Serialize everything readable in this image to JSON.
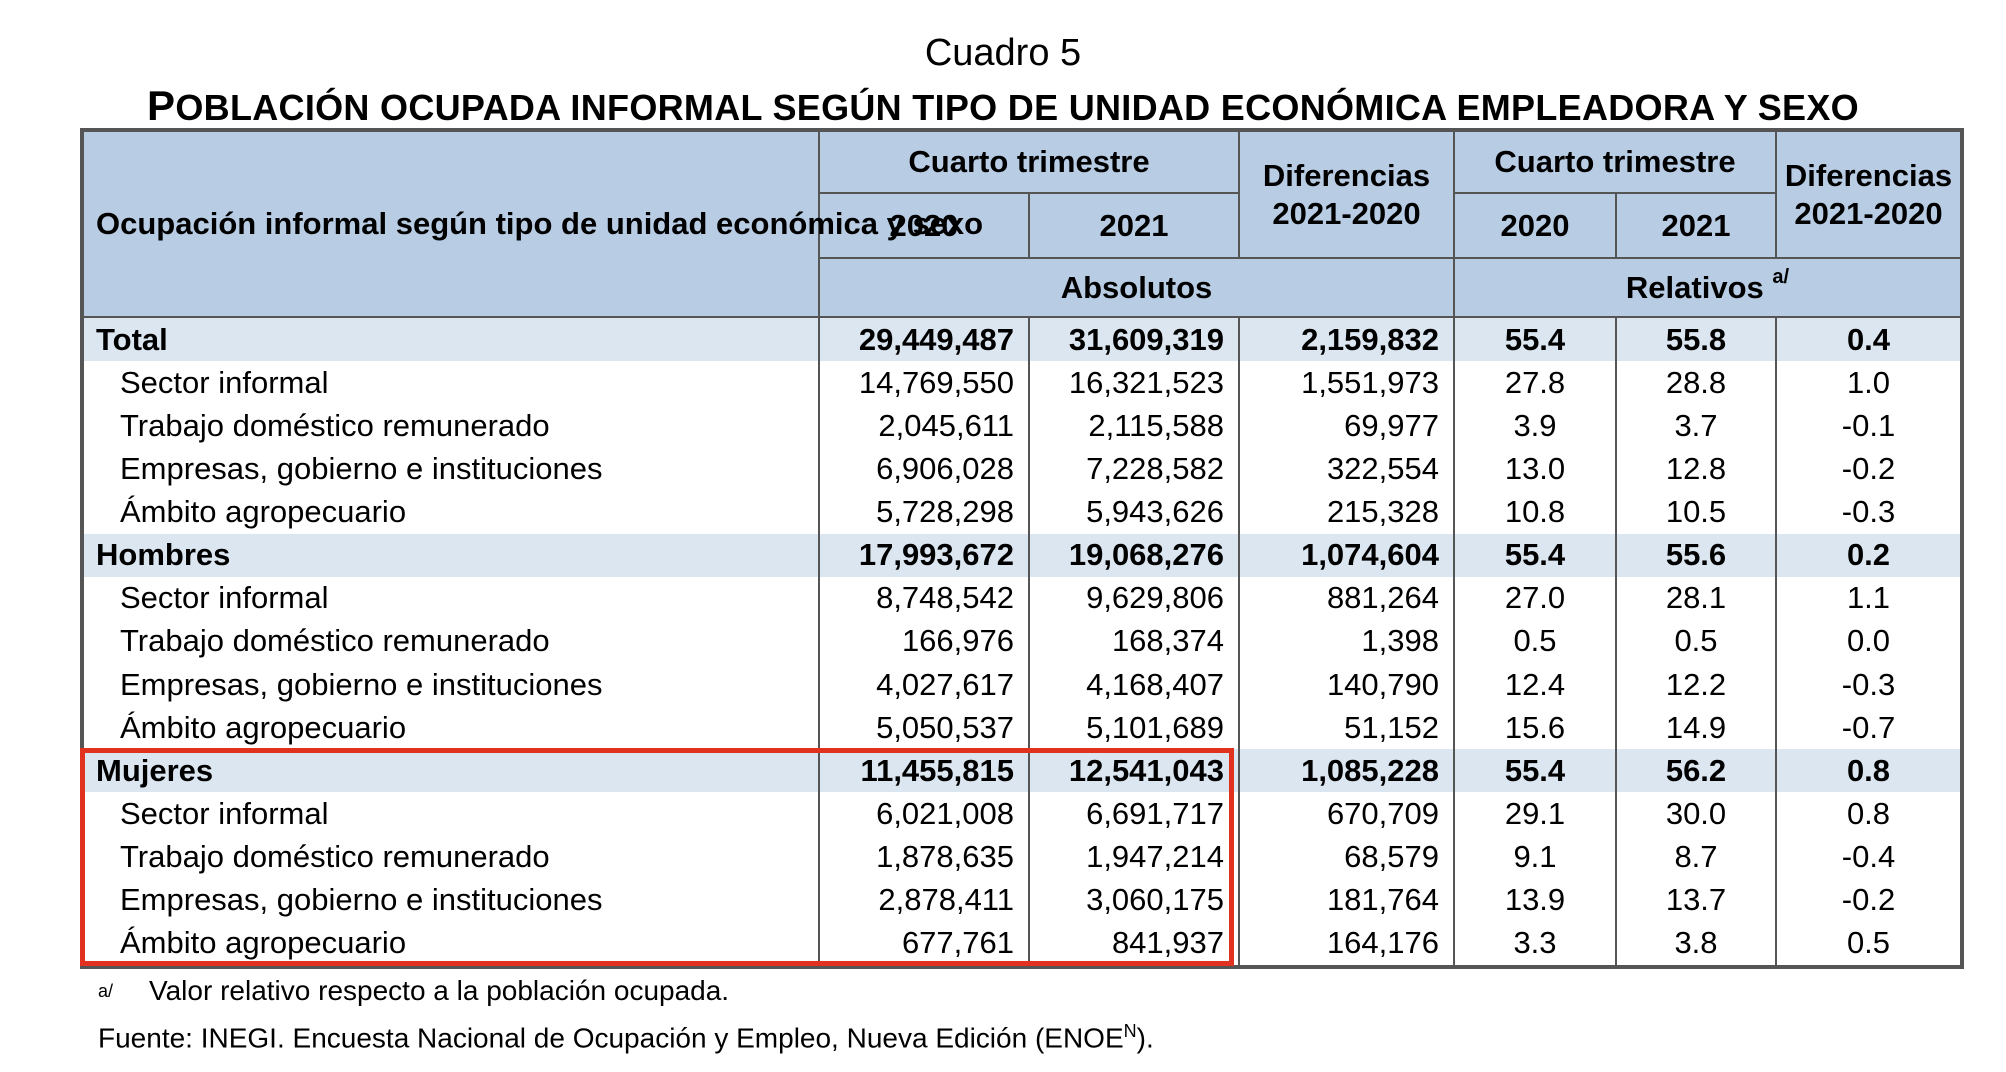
{
  "title": "Cuadro 5",
  "subtitle_first_letter": "P",
  "subtitle_rest": "OBLACIÓN OCUPADA INFORMAL SEGÚN TIPO DE UNIDAD ECONÓMICA EMPLEADORA Y SEXO",
  "header": {
    "row_label": "Ocupación informal según tipo de unidad económica y sexo",
    "group_abs": "Cuarto trimestre",
    "group_rel": "Cuarto trimestre",
    "diff_abs": "Diferencias 2021-2020",
    "diff_rel": "Diferencias 2021-2020",
    "year_2020_abs": "2020",
    "year_2021_abs": "2021",
    "year_2020_rel": "2020",
    "year_2021_rel": "2021",
    "absolutos": "Absolutos",
    "relativos": "Relativos",
    "relativos_note": "a/"
  },
  "rows": [
    {
      "label": "Total",
      "a2020": "29,449,487",
      "a2021": "31,609,319",
      "adiff": "2,159,832",
      "r2020": "55.4",
      "r2021": "55.8",
      "rdiff": "0.4"
    },
    {
      "label": "Sector informal",
      "a2020": "14,769,550",
      "a2021": "16,321,523",
      "adiff": "1,551,973",
      "r2020": "27.8",
      "r2021": "28.8",
      "rdiff": "1.0"
    },
    {
      "label": "Trabajo doméstico remunerado",
      "a2020": "2,045,611",
      "a2021": "2,115,588",
      "adiff": "69,977",
      "r2020": "3.9",
      "r2021": "3.7",
      "rdiff": "-0.1"
    },
    {
      "label": "Empresas, gobierno e instituciones",
      "a2020": "6,906,028",
      "a2021": "7,228,582",
      "adiff": "322,554",
      "r2020": "13.0",
      "r2021": "12.8",
      "rdiff": "-0.2"
    },
    {
      "label": "Ámbito agropecuario",
      "a2020": "5,728,298",
      "a2021": "5,943,626",
      "adiff": "215,328",
      "r2020": "10.8",
      "r2021": "10.5",
      "rdiff": "-0.3"
    },
    {
      "label": "Hombres",
      "a2020": "17,993,672",
      "a2021": "19,068,276",
      "adiff": "1,074,604",
      "r2020": "55.4",
      "r2021": "55.6",
      "rdiff": "0.2"
    },
    {
      "label": "Sector informal",
      "a2020": "8,748,542",
      "a2021": "9,629,806",
      "adiff": "881,264",
      "r2020": "27.0",
      "r2021": "28.1",
      "rdiff": "1.1"
    },
    {
      "label": "Trabajo doméstico remunerado",
      "a2020": "166,976",
      "a2021": "168,374",
      "adiff": "1,398",
      "r2020": "0.5",
      "r2021": "0.5",
      "rdiff": "0.0"
    },
    {
      "label": "Empresas, gobierno e instituciones",
      "a2020": "4,027,617",
      "a2021": "4,168,407",
      "adiff": "140,790",
      "r2020": "12.4",
      "r2021": "12.2",
      "rdiff": "-0.3"
    },
    {
      "label": "Ámbito agropecuario",
      "a2020": "5,050,537",
      "a2021": "5,101,689",
      "adiff": "51,152",
      "r2020": "15.6",
      "r2021": "14.9",
      "rdiff": "-0.7"
    },
    {
      "label": "Mujeres",
      "a2020": "11,455,815",
      "a2021": "12,541,043",
      "adiff": "1,085,228",
      "r2020": "55.4",
      "r2021": "56.2",
      "rdiff": "0.8"
    },
    {
      "label": "Sector informal",
      "a2020": "6,021,008",
      "a2021": "6,691,717",
      "adiff": "670,709",
      "r2020": "29.1",
      "r2021": "30.0",
      "rdiff": "0.8"
    },
    {
      "label": "Trabajo doméstico remunerado",
      "a2020": "1,878,635",
      "a2021": "1,947,214",
      "adiff": "68,579",
      "r2020": "9.1",
      "r2021": "8.7",
      "rdiff": "-0.4"
    },
    {
      "label": "Empresas, gobierno e instituciones",
      "a2020": "2,878,411",
      "a2021": "3,060,175",
      "adiff": "181,764",
      "r2020": "13.9",
      "r2021": "13.7",
      "rdiff": "-0.2"
    },
    {
      "label": "Ámbito agropecuario",
      "a2020": "677,761",
      "a2021": "841,937",
      "adiff": "164,176",
      "r2020": "3.3",
      "r2021": "3.8",
      "rdiff": "0.5"
    }
  ],
  "notes": {
    "mark": "a/",
    "relative": "Valor relativo respecto a la población ocupada.",
    "source_main": "Fuente: INEGI. Encuesta Nacional de Ocupación y Empleo, Nueva Edición (ENOE",
    "source_sup": "N",
    "source_end": ")."
  },
  "highlight_color": "#e0321e",
  "header_fill": "#b8cce4",
  "group_row_fill": "#dce6f1"
}
